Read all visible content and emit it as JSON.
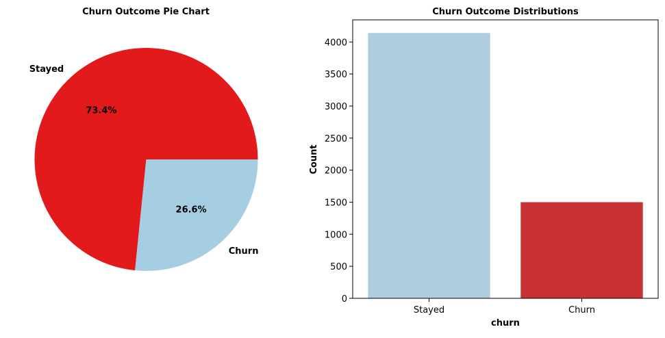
{
  "chart_data": [
    {
      "type": "pie",
      "title": "Churn Outcome Pie Chart",
      "slices": [
        {
          "label": "Stayed",
          "value": 73.4,
          "pct_label": "73.4%",
          "color": "#e31a1c"
        },
        {
          "label": "Churn",
          "value": 26.6,
          "pct_label": "26.6%",
          "color": "#a6cee3"
        }
      ]
    },
    {
      "type": "bar",
      "title": "Churn Outcome Distributions",
      "categories": [
        "Stayed",
        "Churn"
      ],
      "values": [
        4140,
        1500
      ],
      "colors": [
        "#afcddf",
        "#c93234"
      ],
      "xlabel": "churn",
      "ylabel": "Count",
      "ylim": [
        0,
        4345
      ],
      "yticks": [
        0,
        500,
        1000,
        1500,
        2000,
        2500,
        3000,
        3500,
        4000
      ]
    }
  ]
}
